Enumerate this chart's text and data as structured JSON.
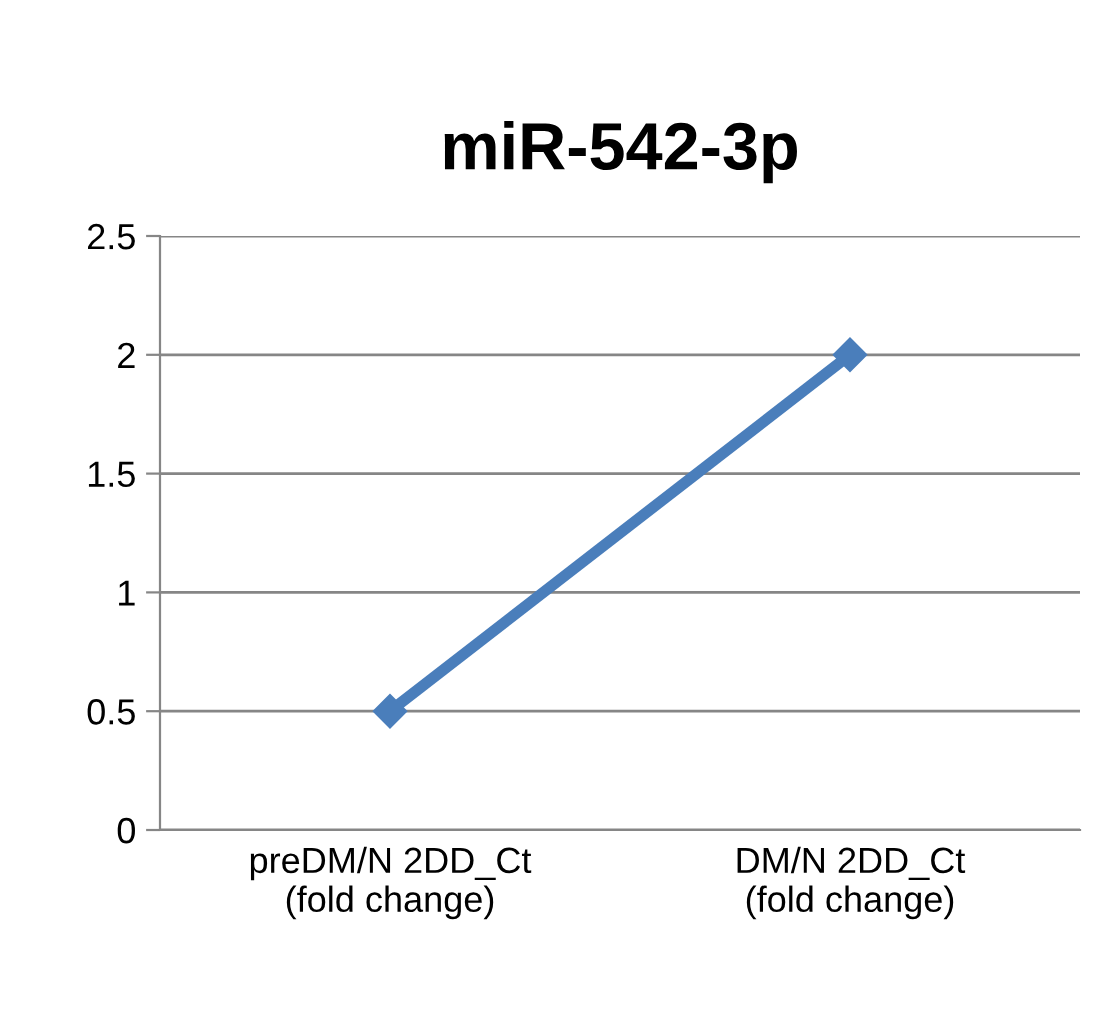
{
  "chart_data": {
    "type": "line",
    "title": "miR-542-3p",
    "categories": [
      "preDM/N 2DD_Ct\n(fold change)",
      "DM/N 2DD_Ct\n(fold change)"
    ],
    "series": [
      {
        "color": "#4a7ebb",
        "values": [
          0.5,
          2
        ]
      }
    ],
    "ylim": [
      0,
      2.5
    ],
    "yticks": [
      0,
      0.5,
      1,
      1.5,
      2,
      2.5
    ],
    "grid": "y",
    "marker": "diamond",
    "line_style": "solid",
    "legend": false
  }
}
